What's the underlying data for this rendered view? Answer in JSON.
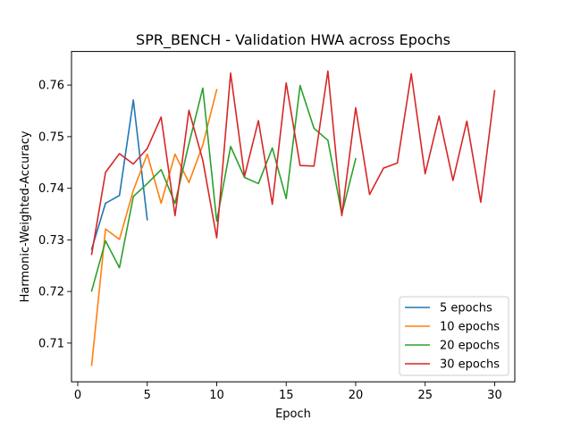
{
  "chart_data": {
    "type": "line",
    "title": "SPR_BENCH - Validation HWA across Epochs",
    "xlabel": "Epoch",
    "ylabel": "Harmonic-Weighted-Accuracy",
    "xlim": [
      -0.45,
      31.45
    ],
    "ylim": [
      0.7025,
      0.7665
    ],
    "xticks": [
      0,
      5,
      10,
      15,
      20,
      25,
      30
    ],
    "yticks": [
      0.71,
      0.72,
      0.73,
      0.74,
      0.75,
      0.76
    ],
    "grid": false,
    "legend_position": "lower-right",
    "series": [
      {
        "name": "5 epochs",
        "color": "#1f77b4",
        "x": [
          1,
          2,
          3,
          4,
          5
        ],
        "y": [
          0.7282,
          0.7371,
          0.7386,
          0.7571,
          0.7339
        ]
      },
      {
        "name": "10 epochs",
        "color": "#ff7f0e",
        "x": [
          1,
          2,
          3,
          4,
          5,
          6,
          7,
          8,
          9,
          10
        ],
        "y": [
          0.7057,
          0.7321,
          0.7301,
          0.7396,
          0.7466,
          0.7371,
          0.7466,
          0.7411,
          0.7484,
          0.7591
        ]
      },
      {
        "name": "20 epochs",
        "color": "#2ca02c",
        "x": [
          1,
          2,
          3,
          4,
          5,
          6,
          7,
          8,
          9,
          10,
          11,
          12,
          13,
          14,
          15,
          16,
          17,
          18,
          19,
          20
        ],
        "y": [
          0.7201,
          0.7298,
          0.7246,
          0.7384,
          0.7409,
          0.7436,
          0.7371,
          0.7486,
          0.7594,
          0.7336,
          0.7481,
          0.7421,
          0.7409,
          0.7478,
          0.738,
          0.7599,
          0.7516,
          0.7493,
          0.735,
          0.7457
        ]
      },
      {
        "name": "30 epochs",
        "color": "#d62728",
        "x": [
          1,
          2,
          3,
          4,
          5,
          6,
          7,
          8,
          9,
          10,
          11,
          12,
          13,
          14,
          15,
          16,
          17,
          18,
          19,
          20,
          21,
          22,
          23,
          24,
          25,
          26,
          27,
          28,
          29,
          30
        ],
        "y": [
          0.7272,
          0.7431,
          0.7467,
          0.7447,
          0.7477,
          0.7538,
          0.7347,
          0.7551,
          0.7454,
          0.7304,
          0.7623,
          0.7423,
          0.7531,
          0.7369,
          0.7604,
          0.7444,
          0.7443,
          0.7627,
          0.7347,
          0.7556,
          0.7388,
          0.7439,
          0.7449,
          0.7622,
          0.7428,
          0.754,
          0.7415,
          0.753,
          0.7373,
          0.7589
        ]
      }
    ]
  }
}
